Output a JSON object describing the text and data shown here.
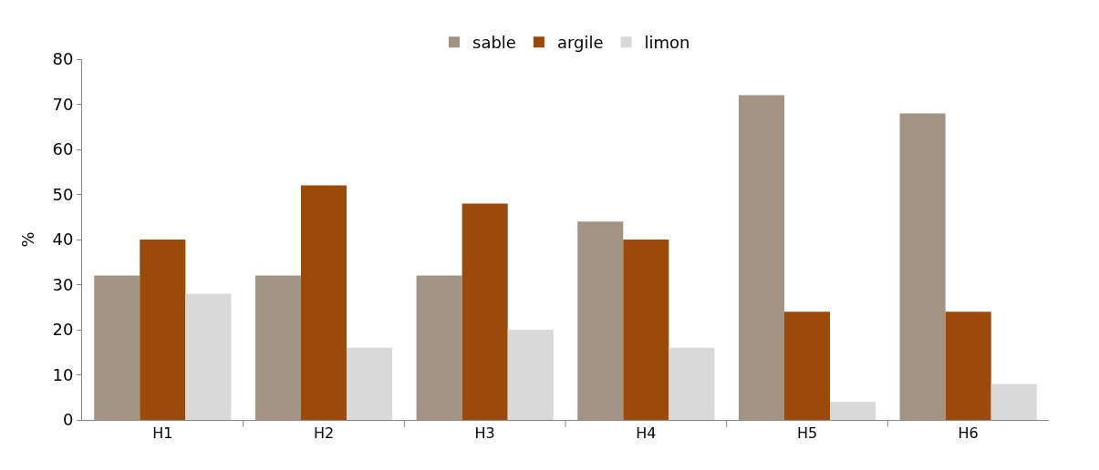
{
  "chart_data": {
    "type": "bar",
    "ylabel": "%",
    "categories": [
      "H1",
      "H2",
      "H3",
      "H4",
      "H5",
      "H6"
    ],
    "series": [
      {
        "name": "sable",
        "color": "#a39383",
        "values": [
          32,
          32,
          32,
          44,
          72,
          68
        ]
      },
      {
        "name": "argile",
        "color": "#9c4a0a",
        "values": [
          40,
          52,
          48,
          40,
          24,
          24
        ]
      },
      {
        "name": "limon",
        "color": "#d9d9d9",
        "values": [
          28,
          16,
          20,
          16,
          4,
          8
        ]
      }
    ],
    "ylim": [
      0,
      80
    ],
    "yticks": [
      0,
      10,
      20,
      30,
      40,
      50,
      60,
      70,
      80
    ],
    "grid": false,
    "legend": "top"
  }
}
